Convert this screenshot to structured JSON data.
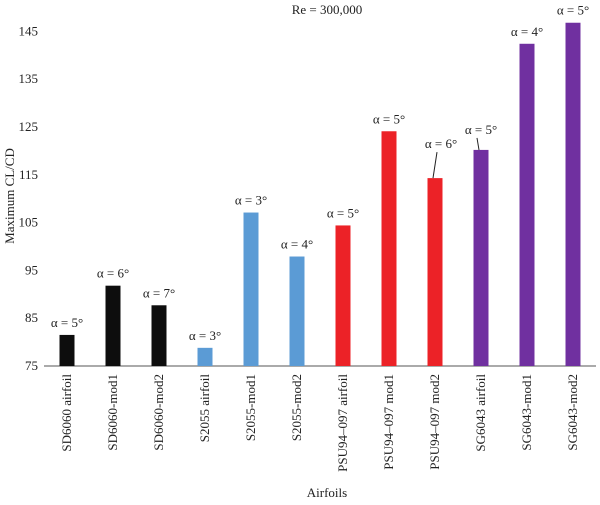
{
  "chart_data": {
    "type": "bar",
    "title": "Re = 300,000",
    "xlabel": "Airfoils",
    "ylabel": "Maximum CL/CD",
    "ylim": [
      75,
      148
    ],
    "yticks": [
      75,
      85,
      95,
      105,
      115,
      125,
      135,
      145
    ],
    "grid": false,
    "legend": "none",
    "categories": [
      "SD6060 airfoil",
      "SD6060-mod1",
      "SD6060-mod2",
      "S2055 airfoil",
      "S2055-mod1",
      "S2055-mod2",
      "PSU94–097 airfoil",
      "PSU94–097 mod1",
      "PSU94–097 mod2",
      "SG6043 airfoil",
      "SG6043-mod1",
      "SG6043-mod2"
    ],
    "values": [
      81.5,
      91.8,
      87.7,
      78.8,
      107.1,
      97.9,
      104.4,
      124.1,
      114.3,
      120.2,
      142.4,
      146.8
    ],
    "colors": [
      "#0d0d0d",
      "#0d0d0d",
      "#0d0d0d",
      "#5b9bd5",
      "#5b9bd5",
      "#5b9bd5",
      "#ec2227",
      "#ec2227",
      "#ec2227",
      "#7030a0",
      "#7030a0",
      "#7030a0"
    ],
    "annotations": [
      "α = 5°",
      "α = 6°",
      "α = 7°",
      "α = 3°",
      "α = 3°",
      "α = 4°",
      "α = 5°",
      "α = 5°",
      "α = 6°",
      "α = 5°",
      "α = 4°",
      "α = 5°"
    ]
  }
}
